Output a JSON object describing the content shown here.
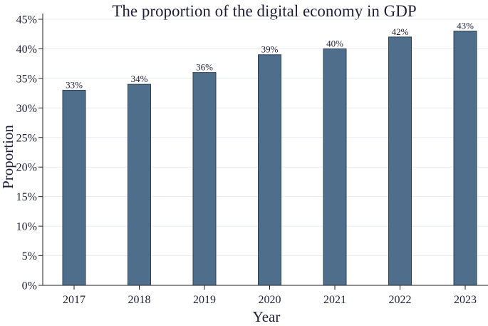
{
  "chart_data": {
    "type": "bar",
    "title": "The proportion of the digital economy in GDP",
    "xlabel": "Year",
    "ylabel": "Proportion",
    "categories": [
      "2017",
      "2018",
      "2019",
      "2020",
      "2021",
      "2022",
      "2023"
    ],
    "values": [
      33,
      34,
      36,
      39,
      40,
      42,
      43
    ],
    "data_labels": [
      "33%",
      "34%",
      "36%",
      "39%",
      "40%",
      "42%",
      "43%"
    ],
    "yticks": [
      0,
      5,
      10,
      15,
      20,
      25,
      30,
      35,
      40,
      45
    ],
    "ytick_labels": [
      "0%",
      "5%",
      "10%",
      "15%",
      "20%",
      "25%",
      "30%",
      "35%",
      "40%",
      "45%"
    ],
    "ylim": [
      0,
      45
    ],
    "grid": true,
    "bar_color": "#4e6e8c",
    "bar_edge_color": "#2d4154"
  }
}
